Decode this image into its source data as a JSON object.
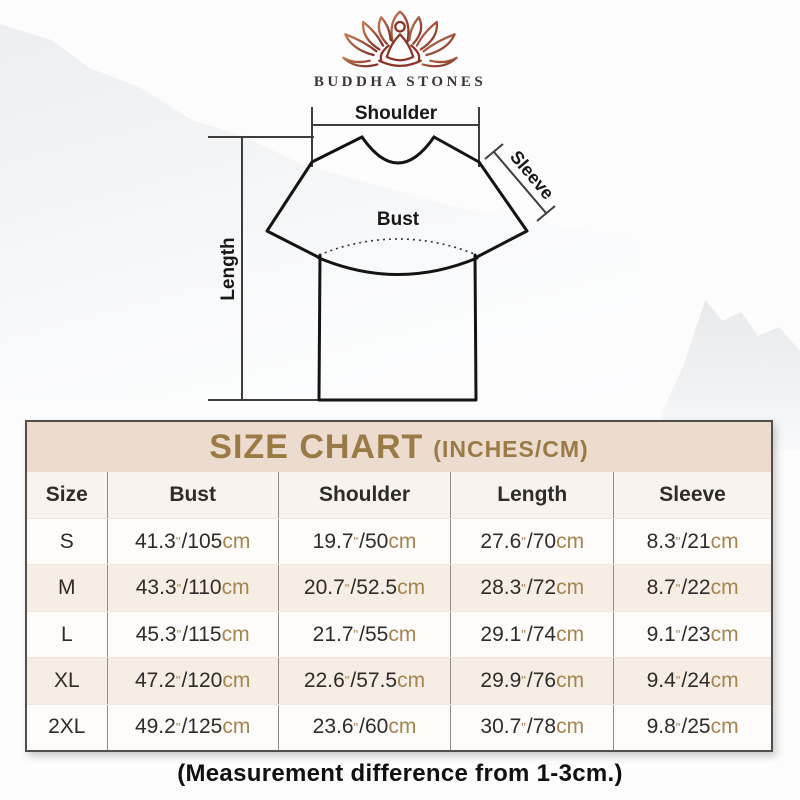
{
  "brand": {
    "name": "BUDDHA STONES"
  },
  "diagram": {
    "labels": {
      "shoulder": "Shoulder",
      "sleeve": "Sleeve",
      "bust": "Bust",
      "length": "Length"
    }
  },
  "table": {
    "title": "SIZE CHART",
    "subtitle": "(INCHES/CM)",
    "headers": [
      "Size",
      "Bust",
      "Shoulder",
      "Length",
      "Sleeve"
    ],
    "format": {
      "inch_mark": "\"",
      "separator": "/",
      "cm_suffix": "cm"
    },
    "rows": [
      {
        "size": "S",
        "measurements": [
          {
            "inches": "41.3",
            "cm": "105"
          },
          {
            "inches": "19.7",
            "cm": "50"
          },
          {
            "inches": "27.6",
            "cm": "70"
          },
          {
            "inches": "8.3",
            "cm": "21"
          }
        ]
      },
      {
        "size": "M",
        "measurements": [
          {
            "inches": "43.3",
            "cm": "110"
          },
          {
            "inches": "20.7",
            "cm": "52.5"
          },
          {
            "inches": "28.3",
            "cm": "72"
          },
          {
            "inches": "8.7",
            "cm": "22"
          }
        ]
      },
      {
        "size": "L",
        "measurements": [
          {
            "inches": "45.3",
            "cm": "115"
          },
          {
            "inches": "21.7",
            "cm": "55"
          },
          {
            "inches": "29.1",
            "cm": "74"
          },
          {
            "inches": "9.1",
            "cm": "23"
          }
        ]
      },
      {
        "size": "XL",
        "measurements": [
          {
            "inches": "47.2",
            "cm": "120"
          },
          {
            "inches": "22.6",
            "cm": "57.5"
          },
          {
            "inches": "29.9",
            "cm": "76"
          },
          {
            "inches": "9.4",
            "cm": "24"
          }
        ]
      },
      {
        "size": "2XL",
        "measurements": [
          {
            "inches": "49.2",
            "cm": "125"
          },
          {
            "inches": "23.6",
            "cm": "60"
          },
          {
            "inches": "30.7",
            "cm": "78"
          },
          {
            "inches": "9.8",
            "cm": "25"
          }
        ]
      }
    ]
  },
  "footer": {
    "note": "(Measurement difference from 1-3cm.)"
  },
  "colors": {
    "accent_gold": "#9b7b45",
    "unit_gold": "#a5854f",
    "band_beige": "#ecdccf",
    "row_alt_beige": "#f6ede5",
    "table_border": "#524e4a",
    "logo_gradient_start": "#c4764f",
    "logo_gradient_end": "#7d2e23"
  }
}
